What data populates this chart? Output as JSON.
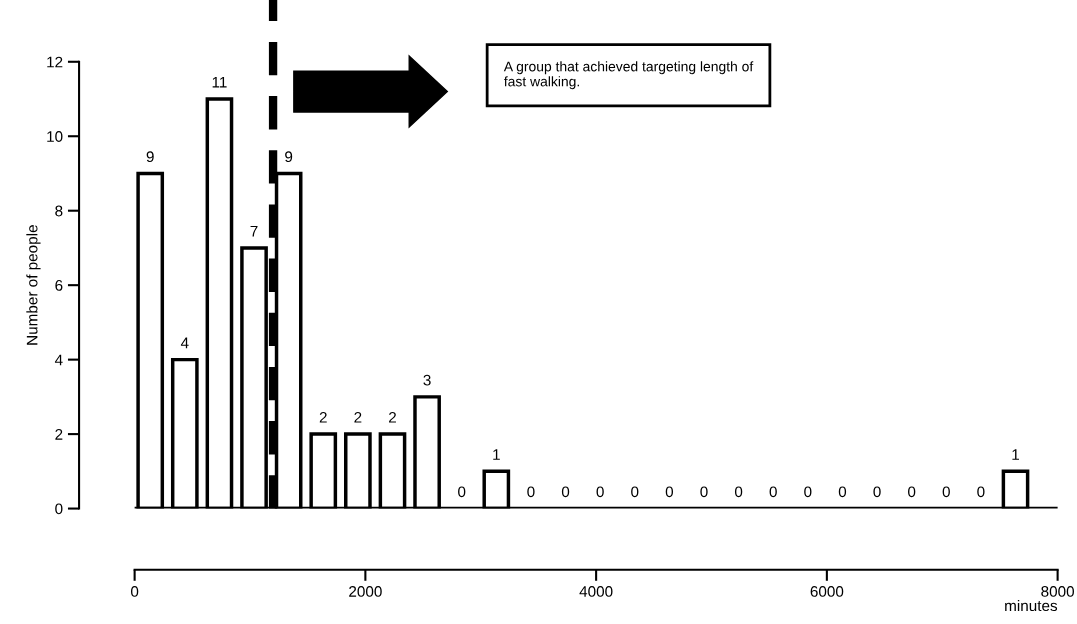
{
  "chart_data": {
    "type": "histogram",
    "bins": [
      0,
      300,
      600,
      900,
      1200,
      1500,
      1800,
      2100,
      2400,
      2700,
      3000,
      3300,
      3600,
      3900,
      4200,
      4500,
      4800,
      5100,
      5400,
      5700,
      6000,
      6300,
      6600,
      6900,
      7200,
      7500,
      7800
    ],
    "values": [
      9,
      4,
      11,
      7,
      9,
      2,
      2,
      2,
      3,
      0,
      1,
      0,
      0,
      0,
      0,
      0,
      0,
      0,
      0,
      0,
      0,
      0,
      0,
      0,
      0,
      1
    ],
    "color": "#ffffff",
    "data_labels": true,
    "xlim": [
      0,
      8000
    ],
    "xticks": [
      0,
      2000,
      4000,
      6000,
      8000
    ],
    "ylim": [
      0,
      12
    ],
    "yticks": [
      0,
      2,
      4,
      6,
      8,
      10,
      12
    ],
    "xlabel": "minutes",
    "ylabel": "Number of people",
    "ref_lines": [
      {
        "axis": "x",
        "value": 1200,
        "label": null,
        "color": "#000000",
        "line_style": "dashed"
      }
    ],
    "annotations": [
      "A group that achieved targeting length of\nfast walking."
    ],
    "grid": false,
    "legend": false
  }
}
